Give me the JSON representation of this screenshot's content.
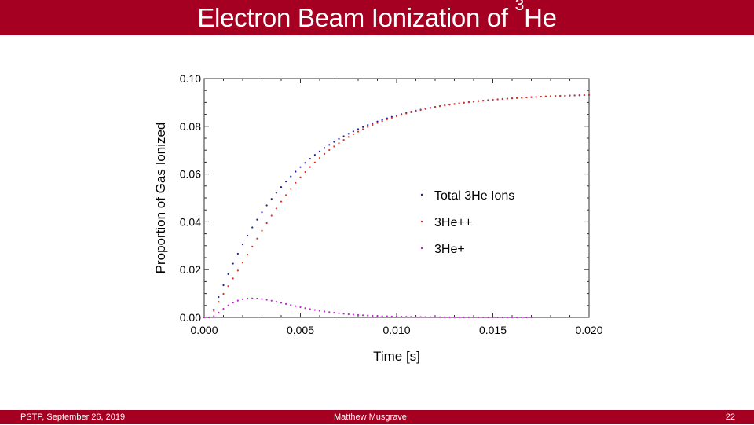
{
  "slide": {
    "title_main": "Electron Beam Ionization of ",
    "title_sup": "3",
    "title_tail": "He",
    "footer_left": "PSTP, September 26, 2019",
    "footer_center": "Matthew Musgrave",
    "footer_right": "22",
    "accent_color": "#a50021"
  },
  "chart_data": {
    "type": "scatter",
    "title": "",
    "xlabel": "Time [s]",
    "ylabel": "Proportion of Gas Ionized",
    "xlim": [
      0,
      0.02
    ],
    "ylim": [
      0,
      0.1
    ],
    "xticks": [
      "0.000",
      "0.005",
      "0.010",
      "0.015",
      "0.020"
    ],
    "yticks": [
      "0.00",
      "0.02",
      "0.04",
      "0.06",
      "0.08",
      "0.10"
    ],
    "grid": false,
    "legend_position": "center-right",
    "series": [
      {
        "name": "Total 3He Ions",
        "color": "#1f1f9e",
        "x_end": 0.02,
        "y_max": 0.094,
        "tau": 0.0042
      },
      {
        "name": "3He++",
        "color": "#e03020",
        "x_end": 0.02,
        "y_max": 0.094,
        "tau": 0.0036
      },
      {
        "name": "3He+",
        "color": "#c020d0",
        "x_end": 0.017,
        "peak_x": 0.0025,
        "peak_y": 0.008
      }
    ]
  }
}
